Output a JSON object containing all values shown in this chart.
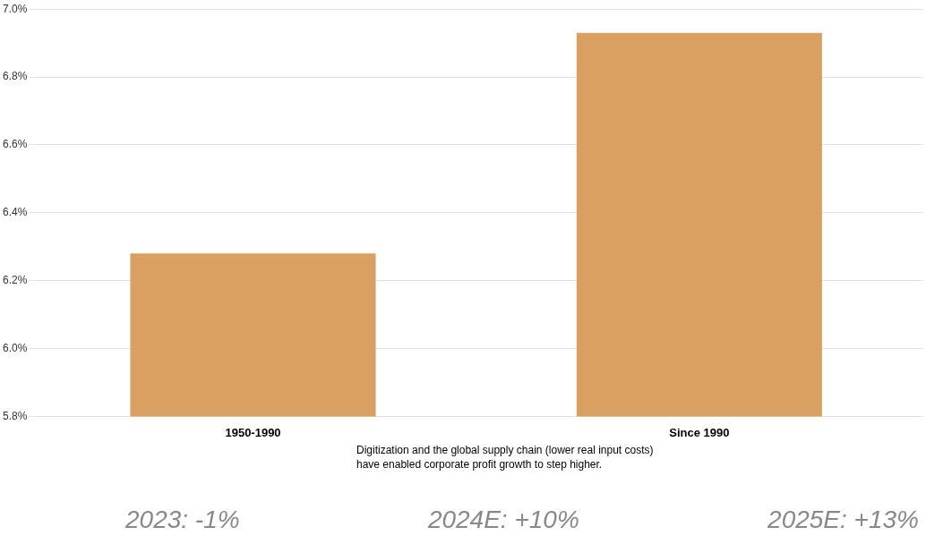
{
  "chart_data": {
    "type": "bar",
    "categories": [
      "1950-1990",
      "Since 1990"
    ],
    "values": [
      6.28,
      6.93
    ],
    "color": "#d9a062",
    "ylim": [
      5.8,
      7.0
    ],
    "yticks": [
      {
        "value": 5.8,
        "label": "5.8%"
      },
      {
        "value": 6.0,
        "label": "6.0%"
      },
      {
        "value": 6.2,
        "label": "6.2%"
      },
      {
        "value": 6.4,
        "label": "6.4%"
      },
      {
        "value": 6.6,
        "label": "6.6%"
      },
      {
        "value": 6.8,
        "label": "6.8%"
      },
      {
        "value": 7.0,
        "label": "7.0%"
      }
    ],
    "grid": "y",
    "legend": false,
    "annotations": [
      "Digitization and the global supply chain (lower real input costs)\nhave enabled corporate profit growth to step higher.",
      "2023: -1%",
      "2024E: +10%",
      "2025E: +13%"
    ]
  }
}
